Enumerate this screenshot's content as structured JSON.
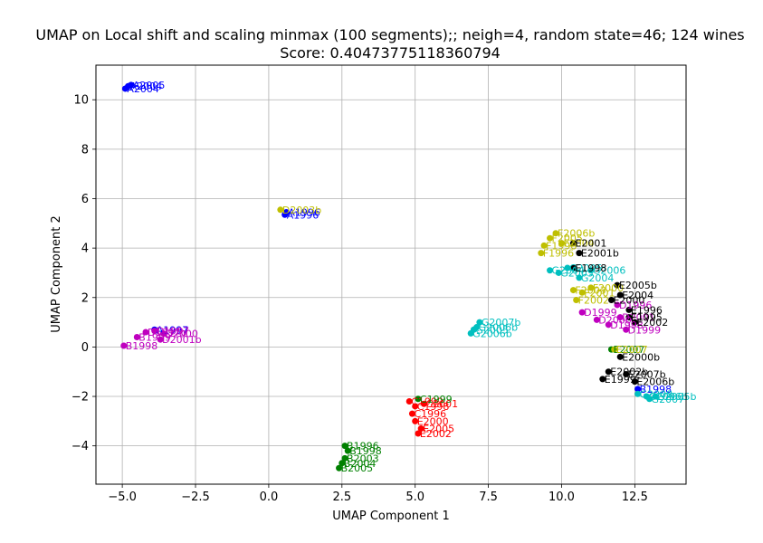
{
  "chart_data": {
    "type": "scatter",
    "title": "UMAP on Local shift and scaling minmax (100 segments);; neigh=4, random state=46; 124 wines",
    "subtitle": "Score: 0.40473775118360794",
    "xlabel": "UMAP Component 1",
    "ylabel": "UMAP Component 2",
    "xlim": [
      -5.9,
      14.25
    ],
    "ylim": [
      -5.55,
      11.4
    ],
    "xticks": [
      -5.0,
      -2.5,
      0.0,
      2.5,
      5.0,
      7.5,
      10.0,
      12.5
    ],
    "xtick_labels": [
      "−5.0",
      "−2.5",
      "0.0",
      "2.5",
      "5.0",
      "7.5",
      "10.0",
      "12.5"
    ],
    "yticks": [
      -4,
      -2,
      0,
      2,
      4,
      6,
      8,
      10
    ],
    "ytick_labels": [
      "−4",
      "−2",
      "0",
      "2",
      "4",
      "6",
      "8",
      "10"
    ],
    "grid": true,
    "colors": {
      "blue": "#0000ff",
      "magenta": "#bf00bf",
      "red": "#ff0000",
      "green": "#008000",
      "cyan": "#00bfbf",
      "olive": "#bfbf00",
      "black": "#000000"
    },
    "series": [
      {
        "color": "blue",
        "points": [
          {
            "x": -4.9,
            "y": 10.45,
            "label": "A2004"
          },
          {
            "x": -4.8,
            "y": 10.55,
            "label": "A2004"
          },
          {
            "x": -4.7,
            "y": 10.6,
            "label": "A2005"
          },
          {
            "x": 0.6,
            "y": 5.45,
            "label": "A1996"
          },
          {
            "x": 0.55,
            "y": 5.35,
            "label": "A1996"
          },
          {
            "x": 12.6,
            "y": -1.7,
            "label": "B1998"
          },
          {
            "x": -3.9,
            "y": 0.7,
            "label": "A1997"
          }
        ]
      },
      {
        "color": "magenta",
        "points": [
          {
            "x": -4.95,
            "y": 0.05,
            "label": "B1998"
          },
          {
            "x": -4.5,
            "y": 0.4,
            "label": "B1999"
          },
          {
            "x": -4.2,
            "y": 0.6,
            "label": "D1997b"
          },
          {
            "x": -3.9,
            "y": 0.65,
            "label": "D1997"
          },
          {
            "x": -3.6,
            "y": 0.55,
            "label": "D2000"
          },
          {
            "x": -3.7,
            "y": 0.3,
            "label": "D2001b"
          },
          {
            "x": 10.7,
            "y": 1.4,
            "label": "D1999"
          },
          {
            "x": 11.2,
            "y": 1.1,
            "label": "D2000"
          },
          {
            "x": 11.6,
            "y": 0.9,
            "label": "D1998"
          },
          {
            "x": 12.0,
            "y": 1.2,
            "label": "D2001"
          },
          {
            "x": 12.2,
            "y": 0.7,
            "label": "D1999"
          },
          {
            "x": 11.9,
            "y": 1.7,
            "label": "D1996"
          }
        ]
      },
      {
        "color": "red",
        "points": [
          {
            "x": 4.8,
            "y": -2.2,
            "label": "C1999"
          },
          {
            "x": 5.0,
            "y": -2.4,
            "label": "C1998"
          },
          {
            "x": 4.9,
            "y": -2.7,
            "label": "C1996"
          },
          {
            "x": 5.0,
            "y": -3.0,
            "label": "E2000"
          },
          {
            "x": 5.2,
            "y": -3.3,
            "label": "E2005"
          },
          {
            "x": 5.1,
            "y": -3.5,
            "label": "E2002"
          },
          {
            "x": 5.3,
            "y": -2.3,
            "label": "C2001"
          }
        ]
      },
      {
        "color": "green",
        "points": [
          {
            "x": 2.6,
            "y": -4.0,
            "label": "B1996"
          },
          {
            "x": 2.7,
            "y": -4.2,
            "label": "B1998"
          },
          {
            "x": 2.6,
            "y": -4.5,
            "label": "B2003"
          },
          {
            "x": 2.5,
            "y": -4.7,
            "label": "B2004"
          },
          {
            "x": 2.4,
            "y": -4.9,
            "label": "B2005"
          },
          {
            "x": 5.1,
            "y": -2.1,
            "label": "C1999"
          },
          {
            "x": 11.7,
            "y": -0.1,
            "label": "E2007"
          }
        ]
      },
      {
        "color": "cyan",
        "points": [
          {
            "x": 6.9,
            "y": 0.55,
            "label": "G2006b"
          },
          {
            "x": 7.0,
            "y": 0.7,
            "label": "G2005"
          },
          {
            "x": 7.1,
            "y": 0.8,
            "label": "G2006b"
          },
          {
            "x": 7.2,
            "y": 1.0,
            "label": "G2007b"
          },
          {
            "x": 9.6,
            "y": 3.1,
            "label": "G2004"
          },
          {
            "x": 9.9,
            "y": 3.0,
            "label": "G2003"
          },
          {
            "x": 10.2,
            "y": 3.2,
            "label": "G2005"
          },
          {
            "x": 10.6,
            "y": 2.8,
            "label": "G2004"
          },
          {
            "x": 11.0,
            "y": 3.1,
            "label": "G2006"
          },
          {
            "x": 12.6,
            "y": -1.9,
            "label": "G2008"
          },
          {
            "x": 12.9,
            "y": -2.0,
            "label": "G2006b"
          },
          {
            "x": 13.2,
            "y": -2.0,
            "label": "G2005b"
          },
          {
            "x": 13.0,
            "y": -2.1,
            "label": "G2007"
          }
        ]
      },
      {
        "color": "olive",
        "points": [
          {
            "x": 0.4,
            "y": 5.55,
            "label": "D2003b"
          },
          {
            "x": 9.3,
            "y": 3.8,
            "label": "F1996"
          },
          {
            "x": 9.4,
            "y": 4.1,
            "label": "F1998"
          },
          {
            "x": 9.6,
            "y": 4.4,
            "label": "F2005"
          },
          {
            "x": 9.8,
            "y": 4.6,
            "label": "F2006b"
          },
          {
            "x": 10.0,
            "y": 4.2,
            "label": "F2004"
          },
          {
            "x": 10.4,
            "y": 2.3,
            "label": "F2003"
          },
          {
            "x": 10.5,
            "y": 1.9,
            "label": "F2002"
          },
          {
            "x": 10.7,
            "y": 2.2,
            "label": "F2001"
          },
          {
            "x": 11.0,
            "y": 2.4,
            "label": "F2000"
          },
          {
            "x": 11.8,
            "y": -0.1,
            "label": "E2007"
          }
        ]
      },
      {
        "color": "black",
        "points": [
          {
            "x": 10.4,
            "y": 4.2,
            "label": "E2001"
          },
          {
            "x": 10.6,
            "y": 3.8,
            "label": "E2001b"
          },
          {
            "x": 10.4,
            "y": 3.2,
            "label": "E1998"
          },
          {
            "x": 11.9,
            "y": 2.5,
            "label": "E2005b"
          },
          {
            "x": 12.0,
            "y": 2.1,
            "label": "E2004"
          },
          {
            "x": 11.7,
            "y": 1.9,
            "label": "E2000"
          },
          {
            "x": 12.3,
            "y": 1.5,
            "label": "E1996"
          },
          {
            "x": 12.3,
            "y": 1.2,
            "label": "E1995"
          },
          {
            "x": 12.5,
            "y": 1.0,
            "label": "E2002"
          },
          {
            "x": 12.0,
            "y": -0.4,
            "label": "E2000b"
          },
          {
            "x": 11.6,
            "y": -1.0,
            "label": "E2002b"
          },
          {
            "x": 12.2,
            "y": -1.1,
            "label": "E2007b"
          },
          {
            "x": 11.4,
            "y": -1.3,
            "label": "E1999"
          },
          {
            "x": 12.5,
            "y": -1.4,
            "label": "E2006b"
          }
        ]
      }
    ]
  }
}
